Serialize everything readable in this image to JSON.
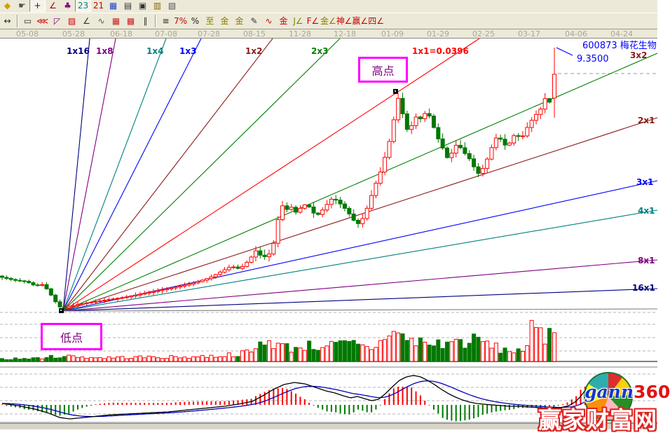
{
  "stock": {
    "title": "600873 梅花生物",
    "price_label": "9.3500"
  },
  "annotations": {
    "high_label": "高点",
    "low_label": "低点"
  },
  "watermark": {
    "logo_gann": "gann",
    "logo_360": "360",
    "site": "赢家财富网"
  },
  "toolbar": {
    "row1": [
      {
        "name": "gem-icon",
        "glyph": "◆",
        "color": "#c8a400"
      },
      {
        "name": "hand-pan-icon",
        "glyph": "☛",
        "color": "#555"
      },
      {
        "name": "crosshair-icon",
        "glyph": "+",
        "color": "#222",
        "pressed": true
      },
      {
        "name": "angle-measure-icon",
        "glyph": "∠",
        "color": "#a00"
      },
      {
        "name": "knot-tool-icon",
        "glyph": "♣",
        "color": "#800080"
      },
      {
        "name": "cycle-23-icon",
        "glyph": "23",
        "color": "#008080",
        "pressed": true
      },
      {
        "name": "calendar-21-icon",
        "glyph": "21",
        "color": "#cc0000"
      },
      {
        "name": "matrix-icon",
        "glyph": "▦",
        "color": "#2244cc"
      },
      {
        "name": "notes-icon",
        "glyph": "▤",
        "color": "#333"
      },
      {
        "name": "save-icon",
        "glyph": "▣",
        "color": "#333"
      },
      {
        "name": "export-icon",
        "glyph": "▥",
        "color": "#886600"
      },
      {
        "name": "print-icon",
        "glyph": "▧",
        "color": "#555"
      }
    ],
    "row2": [
      {
        "name": "bar-width-icon",
        "glyph": "↔",
        "color": "#222"
      },
      {
        "name": "sep"
      },
      {
        "name": "rect-measure-icon",
        "glyph": "▭",
        "color": "#333"
      },
      {
        "name": "gann-fan-icon",
        "glyph": "⋘",
        "color": "#cc0000"
      },
      {
        "name": "gann-fan-box-icon",
        "glyph": "◸",
        "color": "#800080"
      },
      {
        "name": "gann-box-cross-icon",
        "glyph": "▨",
        "color": "#cc0000"
      },
      {
        "name": "trend-angle-icon",
        "glyph": "∠",
        "color": "#333"
      },
      {
        "name": "wave-tool-icon",
        "glyph": "∿",
        "color": "#555"
      },
      {
        "name": "gann-grid-icon",
        "glyph": "▦",
        "color": "#cc2222"
      },
      {
        "name": "gann-grid-arrow-icon",
        "glyph": "▩",
        "color": "#cc2222"
      },
      {
        "name": "parallel-lines-icon",
        "glyph": "∥",
        "color": "#333"
      },
      {
        "name": "sep"
      },
      {
        "name": "quote-list-icon",
        "glyph": "≡",
        "color": "#222"
      },
      {
        "name": "percent-line-icon",
        "glyph": "7%",
        "color": "#cc0000"
      },
      {
        "name": "percent-icon",
        "glyph": "%",
        "color": "#222"
      },
      {
        "name": "zhi-level-icon",
        "glyph": "至",
        "color": "#888000"
      },
      {
        "name": "gold-circle-icon",
        "glyph": "金",
        "color": "#888000"
      },
      {
        "name": "gold-lines-icon",
        "glyph": "金",
        "color": "#888000"
      },
      {
        "name": "brush-icon",
        "glyph": "✎",
        "color": "#333"
      },
      {
        "name": "wave-channel-icon",
        "glyph": "∿",
        "color": "#cc0000"
      },
      {
        "name": "gold-underline-icon",
        "glyph": "金",
        "color": "#cc0000"
      },
      {
        "name": "j-angle-icon",
        "glyph": "J∠",
        "color": "#888000"
      },
      {
        "name": "f-angle-icon",
        "glyph": "F∠",
        "color": "#cc0000"
      },
      {
        "name": "gold-angle-icon",
        "glyph": "金∠",
        "color": "#888000"
      },
      {
        "name": "shen-angle-icon",
        "glyph": "神∠",
        "color": "#cc0000"
      },
      {
        "name": "ying-angle-icon",
        "glyph": "赢∠",
        "color": "#cc0000"
      },
      {
        "name": "si-angle-icon",
        "glyph": "四∠",
        "color": "#cc0000"
      }
    ]
  },
  "chart_data": {
    "type": "candlestick",
    "note": "Gann fan chart of stock 600873, coordinates are screen-pixel estimates read off the image",
    "x_ticks": [
      {
        "label": "05-08",
        "x": 39
      },
      {
        "label": "05-28",
        "x": 105
      },
      {
        "label": "06-18",
        "x": 173
      },
      {
        "label": "07-08",
        "x": 237
      },
      {
        "label": "07-28",
        "x": 298
      },
      {
        "label": "08-15",
        "x": 363
      },
      {
        "label": "11-28",
        "x": 428
      },
      {
        "label": "12-18",
        "x": 492
      },
      {
        "label": "01-09",
        "x": 560
      },
      {
        "label": "01-29",
        "x": 625
      },
      {
        "label": "02-25",
        "x": 690
      },
      {
        "label": "03-17",
        "x": 755
      },
      {
        "label": "04-06",
        "x": 822
      },
      {
        "label": "04-24",
        "x": 887
      }
    ],
    "seed": 7,
    "x_start": 3,
    "x_end": 788,
    "step": 6.35,
    "candle_width": 5,
    "colors": {
      "up": "#ff0000",
      "down": "#007800",
      "dif_line": "#000000",
      "dea_line": "#0000bb",
      "grid": "#b4b4b4",
      "separator": "#808080",
      "pointer": "#0000ff"
    },
    "fan": {
      "origin": [
        90,
        444
      ],
      "lines": [
        {
          "label": "1x16",
          "color": "#000080",
          "end": [
            128,
            55
          ],
          "label_pos": [
            95,
            66
          ]
        },
        {
          "label": "1x8",
          "color": "#800080",
          "end": [
            165,
            55
          ],
          "label_pos": [
            137,
            66
          ]
        },
        {
          "label": "1x4",
          "color": "#008080",
          "end": [
            237,
            55
          ],
          "label_pos": [
            209,
            66
          ]
        },
        {
          "label": "1x3",
          "color": "#0000ff",
          "end": [
            287,
            55
          ],
          "label_pos": [
            256,
            66
          ]
        },
        {
          "label": "1x2",
          "color": "#8b1a1a",
          "end": [
            389,
            55
          ],
          "label_pos": [
            350,
            66
          ]
        },
        {
          "label": "2x3",
          "color": "#008000",
          "end": [
            485,
            55
          ],
          "label_pos": [
            444,
            66
          ]
        },
        {
          "label": "1x1=0.0396",
          "color": "#ff0000",
          "end": [
            684,
            55
          ],
          "label_pos": [
            588,
            66
          ]
        },
        {
          "label": "3x2",
          "color": "#8b1a1a",
          "line_color": "#008000",
          "end": [
            938,
            76
          ],
          "label_pos": [
            899,
            72
          ]
        },
        {
          "label": "2x1",
          "color": "#8b1a1a",
          "end": [
            938,
            168
          ],
          "label_pos": [
            910,
            165
          ]
        },
        {
          "label": "3x1",
          "color": "#0000ff",
          "end": [
            938,
            258
          ],
          "label_pos": [
            908,
            253
          ]
        },
        {
          "label": "4x1",
          "color": "#008080",
          "end": [
            938,
            300
          ],
          "label_pos": [
            910,
            294
          ]
        },
        {
          "label": "8x1",
          "color": "#800080",
          "end": [
            938,
            371
          ],
          "label_pos": [
            910,
            365
          ]
        },
        {
          "label": "16x1",
          "color": "#000080",
          "end": [
            938,
            412
          ],
          "label_pos": [
            902,
            404
          ]
        },
        {
          "label": "",
          "color": "#808080",
          "end": [
            938,
            441
          ]
        }
      ]
    },
    "price_path": [
      [
        3,
        396
      ],
      [
        20,
        400
      ],
      [
        38,
        402
      ],
      [
        50,
        408
      ],
      [
        62,
        406
      ],
      [
        72,
        420
      ],
      [
        80,
        432
      ],
      [
        88,
        441
      ],
      [
        95,
        438
      ],
      [
        105,
        436
      ],
      [
        120,
        433
      ],
      [
        140,
        430
      ],
      [
        160,
        427
      ],
      [
        180,
        424
      ],
      [
        200,
        420
      ],
      [
        220,
        416
      ],
      [
        240,
        412
      ],
      [
        260,
        408
      ],
      [
        280,
        403
      ],
      [
        300,
        396
      ],
      [
        315,
        388
      ],
      [
        330,
        380
      ],
      [
        342,
        384
      ],
      [
        355,
        372
      ],
      [
        365,
        358
      ],
      [
        375,
        368
      ],
      [
        385,
        362
      ],
      [
        393,
        340
      ],
      [
        400,
        290
      ],
      [
        408,
        300
      ],
      [
        415,
        295
      ],
      [
        422,
        303
      ],
      [
        430,
        296
      ],
      [
        438,
        290
      ],
      [
        445,
        302
      ],
      [
        452,
        308
      ],
      [
        460,
        300
      ],
      [
        468,
        290
      ],
      [
        475,
        282
      ],
      [
        482,
        288
      ],
      [
        490,
        295
      ],
      [
        498,
        305
      ],
      [
        505,
        315
      ],
      [
        512,
        320
      ],
      [
        520,
        308
      ],
      [
        528,
        285
      ],
      [
        535,
        265
      ],
      [
        542,
        248
      ],
      [
        549,
        225
      ],
      [
        556,
        200
      ],
      [
        562,
        170
      ],
      [
        568,
        140
      ],
      [
        572,
        150
      ],
      [
        578,
        180
      ],
      [
        584,
        190
      ],
      [
        590,
        170
      ],
      [
        596,
        165
      ],
      [
        602,
        172
      ],
      [
        608,
        158
      ],
      [
        614,
        168
      ],
      [
        620,
        185
      ],
      [
        626,
        200
      ],
      [
        632,
        212
      ],
      [
        638,
        225
      ],
      [
        645,
        218
      ],
      [
        652,
        205
      ],
      [
        658,
        212
      ],
      [
        664,
        220
      ],
      [
        670,
        227
      ],
      [
        676,
        238
      ],
      [
        682,
        248
      ],
      [
        688,
        242
      ],
      [
        694,
        230
      ],
      [
        700,
        215
      ],
      [
        706,
        198
      ],
      [
        712,
        195
      ],
      [
        718,
        205
      ],
      [
        724,
        210
      ],
      [
        730,
        198
      ],
      [
        736,
        190
      ],
      [
        742,
        198
      ],
      [
        748,
        192
      ],
      [
        754,
        178
      ],
      [
        760,
        170
      ],
      [
        766,
        162
      ],
      [
        772,
        155
      ],
      [
        778,
        140
      ],
      [
        783,
        150
      ],
      [
        788,
        130
      ]
    ],
    "final_candle": {
      "x": 791,
      "open": 140,
      "close": 106,
      "high": 68,
      "low": 168
    },
    "high_point": {
      "x": 568,
      "y": 131
    },
    "pointer": {
      "from": [
        794,
        68
      ],
      "to": [
        817,
        79
      ]
    },
    "dashed_price_line": {
      "y": 105,
      "x1": 796,
      "x2": 938
    },
    "gridlines": {
      "main_dashed": [
        446
      ],
      "volume_dashed": [
        463,
        482,
        501
      ],
      "macd_dashed": [
        534,
        553,
        572,
        591
      ]
    },
    "volume": {
      "baseline": 516,
      "profile": [
        [
          3,
          4
        ],
        [
          50,
          5
        ],
        [
          90,
          9
        ],
        [
          140,
          6
        ],
        [
          200,
          7
        ],
        [
          260,
          7
        ],
        [
          310,
          9
        ],
        [
          345,
          13
        ],
        [
          362,
          16
        ],
        [
          378,
          36
        ],
        [
          392,
          30
        ],
        [
          405,
          24
        ],
        [
          420,
          21
        ],
        [
          435,
          27
        ],
        [
          450,
          23
        ],
        [
          465,
          29
        ],
        [
          480,
          25
        ],
        [
          495,
          29
        ],
        [
          510,
          26
        ],
        [
          525,
          21
        ],
        [
          540,
          26
        ],
        [
          557,
          54
        ],
        [
          567,
          44
        ],
        [
          578,
          38
        ],
        [
          590,
          31
        ],
        [
          602,
          33
        ],
        [
          615,
          27
        ],
        [
          628,
          29
        ],
        [
          642,
          31
        ],
        [
          655,
          33
        ],
        [
          668,
          31
        ],
        [
          680,
          35
        ],
        [
          692,
          31
        ],
        [
          705,
          23
        ],
        [
          718,
          19
        ],
        [
          730,
          16
        ],
        [
          742,
          22
        ],
        [
          752,
          19
        ],
        [
          758,
          48
        ],
        [
          764,
          56
        ],
        [
          770,
          44
        ],
        [
          776,
          32
        ],
        [
          782,
          52
        ],
        [
          788,
          60
        ],
        [
          791,
          62
        ]
      ]
    },
    "macd": {
      "zero": 578,
      "hist_scale": 2.0,
      "hist_max": 26,
      "x_end": 838,
      "ema_alpha": 0.1,
      "dif_path": [
        [
          3,
          576
        ],
        [
          25,
          579
        ],
        [
          50,
          584
        ],
        [
          70,
          590
        ],
        [
          85,
          596
        ],
        [
          100,
          598
        ],
        [
          120,
          596
        ],
        [
          140,
          594
        ],
        [
          160,
          592
        ],
        [
          180,
          591
        ],
        [
          200,
          590
        ],
        [
          220,
          589
        ],
        [
          240,
          588
        ],
        [
          260,
          586
        ],
        [
          280,
          584
        ],
        [
          300,
          582
        ],
        [
          320,
          580
        ],
        [
          340,
          577
        ],
        [
          360,
          573
        ],
        [
          375,
          565
        ],
        [
          390,
          556
        ],
        [
          405,
          549
        ],
        [
          420,
          546
        ],
        [
          435,
          548
        ],
        [
          450,
          553
        ],
        [
          465,
          558
        ],
        [
          478,
          561
        ],
        [
          490,
          565
        ],
        [
          500,
          568
        ],
        [
          510,
          566
        ],
        [
          520,
          569
        ],
        [
          530,
          572
        ],
        [
          540,
          570
        ],
        [
          550,
          562
        ],
        [
          560,
          552
        ],
        [
          570,
          543
        ],
        [
          580,
          538
        ],
        [
          590,
          536
        ],
        [
          600,
          538
        ],
        [
          610,
          543
        ],
        [
          620,
          549
        ],
        [
          630,
          556
        ],
        [
          640,
          562
        ],
        [
          650,
          567
        ],
        [
          660,
          571
        ],
        [
          670,
          574
        ],
        [
          680,
          576
        ],
        [
          690,
          577
        ],
        [
          702,
          578
        ],
        [
          715,
          579
        ],
        [
          728,
          580
        ],
        [
          740,
          580
        ],
        [
          755,
          581
        ],
        [
          770,
          582
        ],
        [
          785,
          583
        ],
        [
          800,
          582
        ],
        [
          812,
          579
        ],
        [
          822,
          573
        ],
        [
          830,
          564
        ],
        [
          838,
          553
        ]
      ]
    }
  }
}
